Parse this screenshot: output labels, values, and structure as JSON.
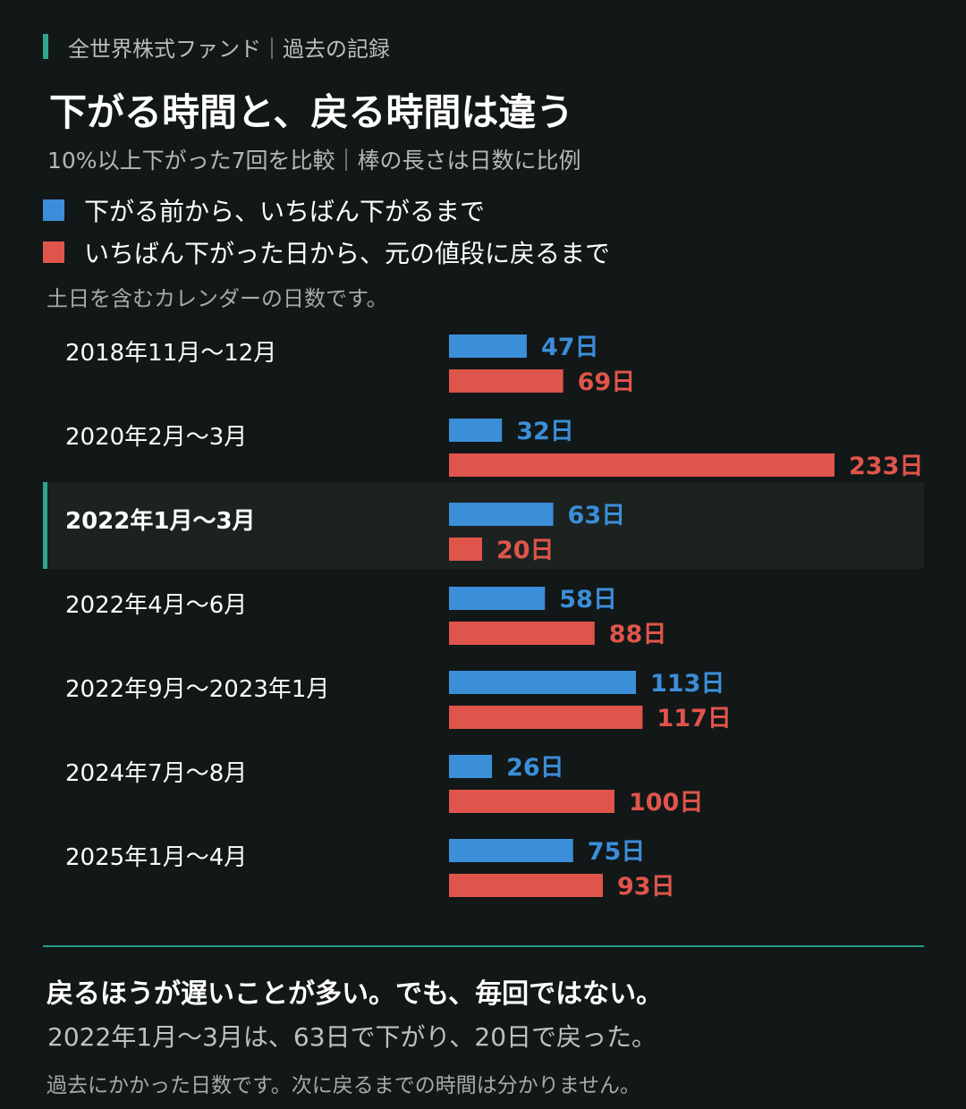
{
  "header": {
    "kicker": "全世界株式ファンド｜過去の記録",
    "headline": "下がる時間と、戻る時間は違う",
    "subtitle": "10%以上下がった7回を比較｜棒の長さは日数に比例",
    "note": "土日を含むカレンダーの日数です。"
  },
  "colors": {
    "background": "#121717",
    "decline": "#3b8ed8",
    "recovery": "#e0554b",
    "accent": "#2fa58f",
    "highlight_bg": "#1b2220"
  },
  "chart_data": {
    "type": "bar",
    "orientation": "horizontal",
    "unit": "日",
    "categories": [
      "2018年11月～12月",
      "2020年2月～3月",
      "2022年1月～3月",
      "2022年4月～6月",
      "2022年9月～2023年1月",
      "2024年7月～8月",
      "2025年1月～4月"
    ],
    "series": [
      {
        "name": "下がる前から、いちばん下がるまで",
        "values": [
          47,
          32,
          63,
          58,
          113,
          26,
          75
        ]
      },
      {
        "name": "いちばん下がった日から、元の値段に戻るまで",
        "values": [
          69,
          233,
          20,
          88,
          117,
          100,
          93
        ]
      }
    ],
    "value_labels": [
      [
        "47日",
        "32日",
        "63日",
        "58日",
        "113日",
        "26日",
        "75日"
      ],
      [
        "69日",
        "233日",
        "20日",
        "88日",
        "117日",
        "100日",
        "93日"
      ]
    ],
    "highlight_index": 2,
    "xlim": [
      0,
      233
    ],
    "grid": false,
    "legend_position": "top-left"
  },
  "footer": {
    "conclusion": "戻るほうが遅いことが多い。でも、毎回ではない。",
    "detail": "2022年1月～3月は、63日で下がり、20日で戻った。",
    "caveat": "過去にかかった日数です。次に戻るまでの時間は分かりません。"
  }
}
